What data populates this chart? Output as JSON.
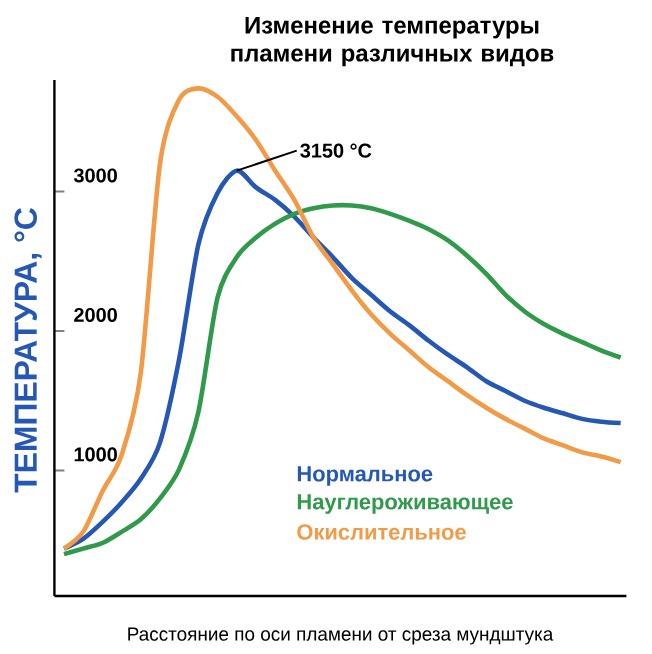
{
  "chart_data": {
    "type": "line",
    "title": "Изменение температуры пламени различных видов",
    "xlabel": "Расстояние по оси пламени от среза мундштука",
    "ylabel": "ТЕМПЕРАТУРА, °C",
    "categories": [
      null,
      null,
      null,
      null,
      null,
      null,
      null,
      null,
      null,
      null,
      null,
      null,
      null,
      null,
      null,
      null,
      null,
      null,
      null,
      null,
      null,
      null,
      null,
      null,
      null,
      null,
      null,
      null,
      null,
      null
    ],
    "series": [
      {
        "name": "Нормальное",
        "color": "#2458b4",
        "values": [
          440,
          510,
          630,
          770,
          940,
          1200,
          1800,
          2620,
          2990,
          3150,
          3030,
          2940,
          2820,
          2670,
          2530,
          2380,
          2260,
          2140,
          2040,
          1930,
          1830,
          1740,
          1640,
          1570,
          1500,
          1450,
          1410,
          1370,
          1350,
          1340
        ]
      },
      {
        "name": "Науглероживающее",
        "color": "#2e9a4a",
        "values": [
          400,
          440,
          480,
          560,
          650,
          800,
          1010,
          1420,
          2240,
          2530,
          2670,
          2770,
          2840,
          2880,
          2900,
          2900,
          2880,
          2840,
          2790,
          2730,
          2650,
          2540,
          2410,
          2260,
          2140,
          2050,
          1980,
          1920,
          1860,
          1810
        ]
      },
      {
        "name": "Окислительное",
        "color": "#f29a45",
        "values": [
          440,
          560,
          850,
          1110,
          1700,
          3200,
          3660,
          3740,
          3680,
          3540,
          3370,
          3150,
          2940,
          2670,
          2480,
          2290,
          2120,
          1980,
          1860,
          1740,
          1640,
          1540,
          1450,
          1370,
          1300,
          1230,
          1180,
          1130,
          1100,
          1060
        ]
      }
    ],
    "ylim": [
      100,
      3800
    ],
    "yticks": [
      1000,
      2000,
      3000
    ],
    "legend": "bottom right",
    "grid": false,
    "marker": "none",
    "line_style": "solid",
    "annotations": [
      "3150 °C"
    ]
  }
}
